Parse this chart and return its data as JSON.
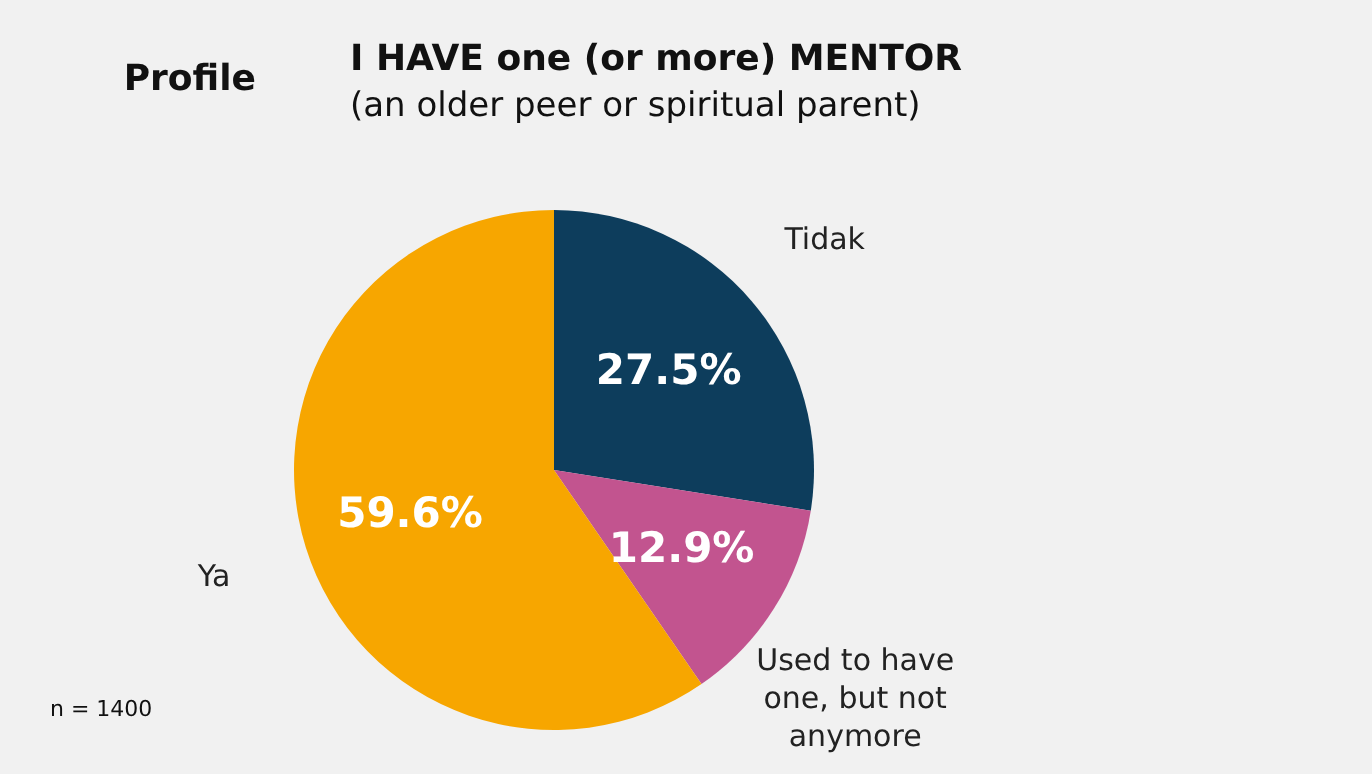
{
  "chart_data": {
    "type": "pie",
    "title": "I HAVE one (or more) MENTOR",
    "subtitle": "(an older peer or spiritual parent)",
    "categories": [
      "Tidak",
      "Used to have one, but not anymore",
      "Ya"
    ],
    "values": [
      27.5,
      12.9,
      59.6
    ],
    "colors": [
      "#0d3d5c",
      "#c2548f",
      "#f7a600"
    ],
    "value_labels": [
      "27.5%",
      "12.9%",
      "59.6%"
    ],
    "legend": false,
    "annotations": [
      "Profile",
      "n = 1400"
    ]
  }
}
